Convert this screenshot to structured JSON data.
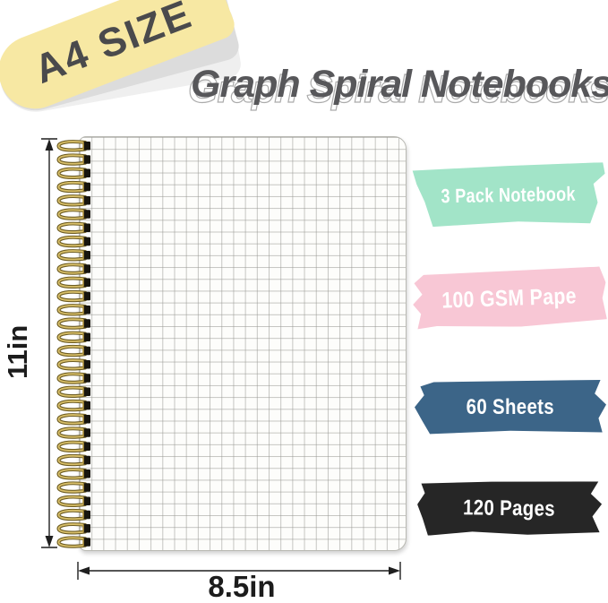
{
  "badge": {
    "label": "A4 SIZE",
    "color": "#f7e8a3"
  },
  "title": "Graph Spiral Notebooks",
  "dimensions": {
    "height_label": "11in",
    "width_label": "8.5in"
  },
  "banners": [
    {
      "label": "3 Pack Notebook",
      "color": "#a2e4c8"
    },
    {
      "label": "100 GSM Pape",
      "color": "#f8c7d5"
    },
    {
      "label": "60 Sheets",
      "color": "#3c6588"
    },
    {
      "label": "120 Pages",
      "color": "#262626"
    }
  ]
}
